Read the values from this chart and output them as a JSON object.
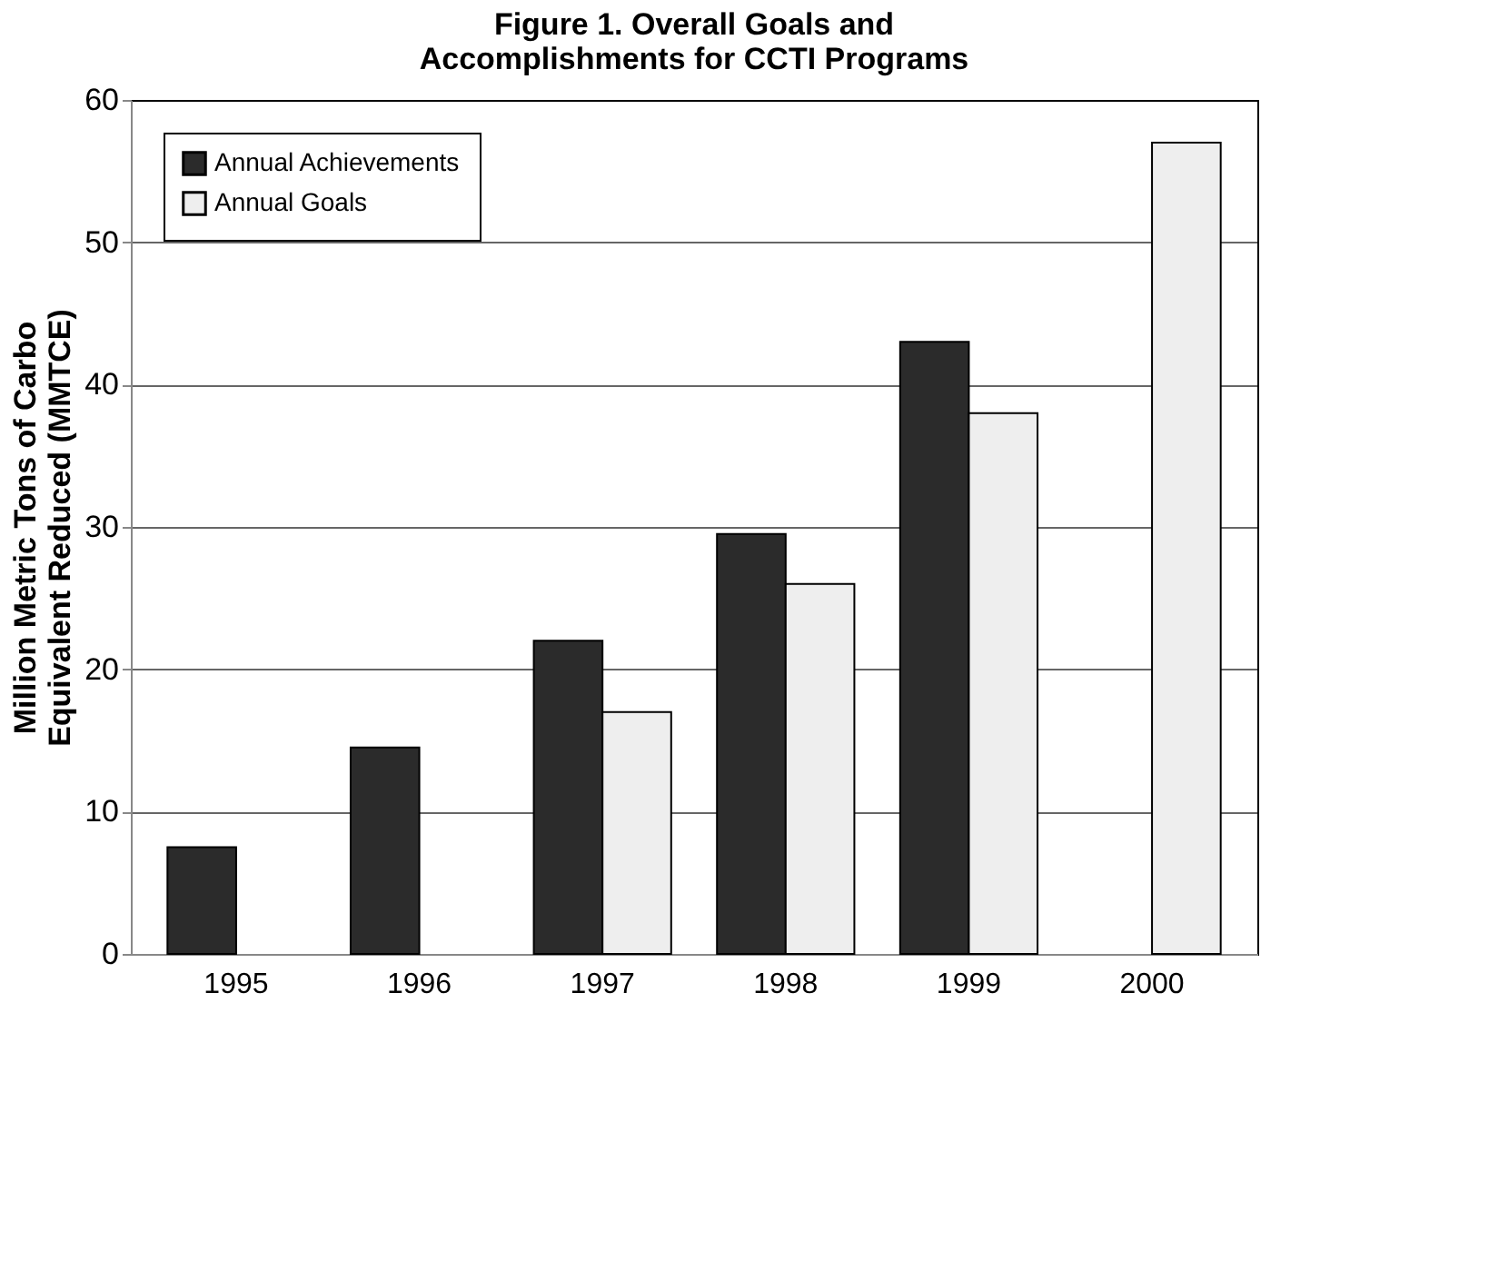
{
  "chart_data": {
    "type": "bar",
    "title": [
      "Figure 1.  Overall Goals and",
      "Accomplishments for CCTI Programs"
    ],
    "ylabel": [
      "Million Metric Tons of Carbo",
      "Equivalent Reduced (MMTCE)"
    ],
    "categories": [
      "1995",
      "1996",
      "1997",
      "1998",
      "1999",
      "2000"
    ],
    "series": [
      {
        "name": "Annual Achievements",
        "color": "#2b2b2b",
        "values": [
          7.5,
          14.5,
          22,
          29.5,
          43,
          null
        ]
      },
      {
        "name": "Annual Goals",
        "color": "#eeeeee",
        "values": [
          null,
          null,
          17,
          26,
          38,
          57
        ]
      }
    ],
    "ylim": [
      0,
      60
    ],
    "yticks": [
      0,
      10,
      20,
      30,
      40,
      50,
      60
    ],
    "grid": "y",
    "legend": "top left"
  }
}
